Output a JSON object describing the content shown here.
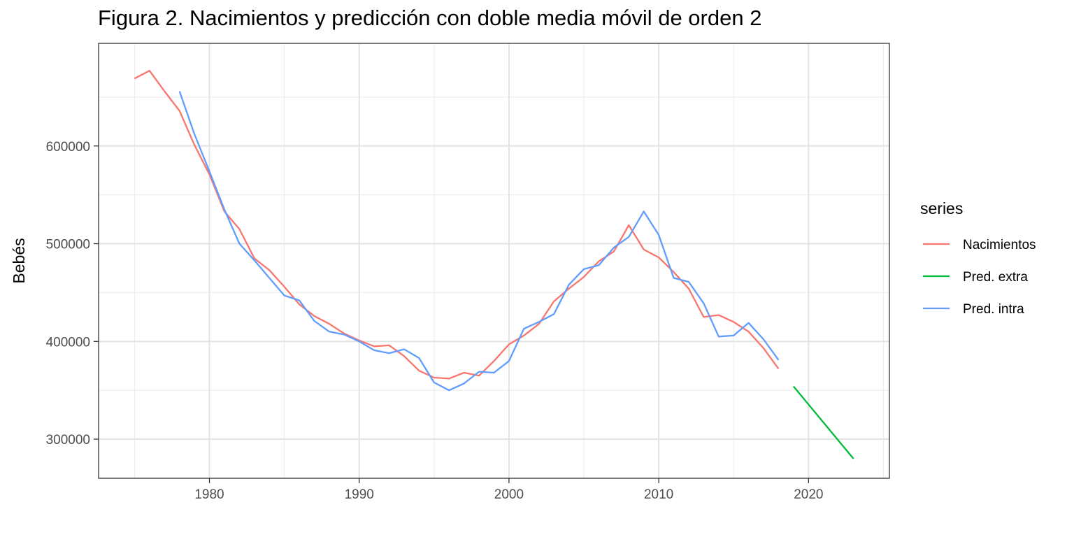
{
  "chart_data": {
    "type": "line",
    "title": "Figura 2. Nacimientos y predicción con doble media móvil de orden 2",
    "xlabel": "",
    "ylabel": "Bebés",
    "xlim": [
      1972.6,
      2025.4
    ],
    "ylim": [
      260000,
      705000
    ],
    "x_ticks": [
      1980,
      1990,
      2000,
      2010,
      2020
    ],
    "y_ticks": [
      300000,
      400000,
      500000,
      600000
    ],
    "grid": true,
    "legend": {
      "title": "series",
      "position": "right"
    },
    "series": [
      {
        "name": "Nacimientos",
        "color": "#F8766D",
        "x": [
          1975,
          1976,
          1977,
          1978,
          1979,
          1980,
          1981,
          1982,
          1983,
          1984,
          1985,
          1986,
          1987,
          1988,
          1989,
          1990,
          1991,
          1992,
          1993,
          1994,
          1995,
          1996,
          1997,
          1998,
          1999,
          2000,
          2001,
          2002,
          2003,
          2004,
          2005,
          2006,
          2007,
          2008,
          2009,
          2010,
          2011,
          2012,
          2013,
          2014,
          2015,
          2016,
          2017,
          2018
        ],
        "values": [
          669000,
          677000,
          656000,
          636000,
          601000,
          571000,
          533000,
          515000,
          485000,
          473000,
          456000,
          438000,
          426000,
          418000,
          408000,
          401000,
          395000,
          396000,
          385000,
          370000,
          363000,
          362000,
          368000,
          365000,
          380000,
          397000,
          406000,
          418000,
          441000,
          454000,
          466000,
          482000,
          492000,
          519000,
          494000,
          486000,
          471000,
          454000,
          425000,
          427000,
          420000,
          410000,
          393000,
          372000
        ]
      },
      {
        "name": "Pred. extra",
        "color": "#00BA38",
        "x": [
          2019,
          2023
        ],
        "values": [
          354000,
          280000
        ]
      },
      {
        "name": "Pred. intra",
        "color": "#619CFF",
        "x": [
          1978,
          1979,
          1980,
          1981,
          1982,
          1983,
          1984,
          1985,
          1986,
          1987,
          1988,
          1989,
          1990,
          1991,
          1992,
          1993,
          1994,
          1995,
          1996,
          1997,
          1998,
          1999,
          2000,
          2001,
          2002,
          2003,
          2004,
          2005,
          2006,
          2007,
          2008,
          2009,
          2010,
          2011,
          2012,
          2013,
          2014,
          2015,
          2016,
          2017,
          2018
        ],
        "values": [
          656000,
          612000,
          574000,
          535000,
          500000,
          483000,
          465000,
          447000,
          442000,
          421000,
          410000,
          407000,
          400000,
          391000,
          388000,
          392000,
          383000,
          358000,
          350000,
          357000,
          369000,
          368000,
          380000,
          413000,
          420000,
          428000,
          458000,
          474000,
          478000,
          496000,
          507000,
          533000,
          509000,
          465000,
          461000,
          439000,
          405000,
          406000,
          419000,
          402000,
          381000
        ]
      }
    ]
  }
}
